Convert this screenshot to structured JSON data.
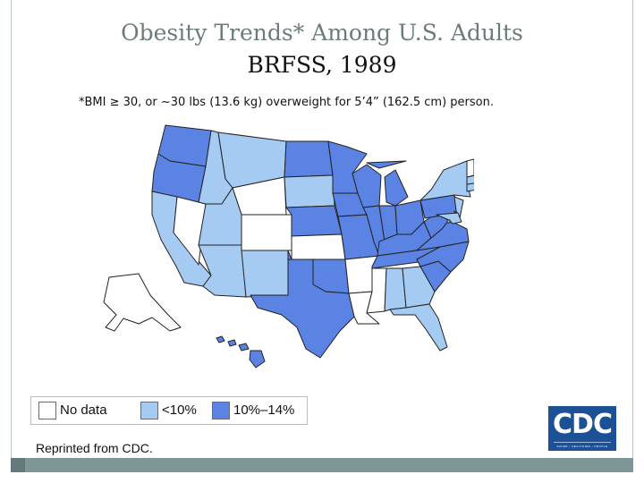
{
  "slide": {
    "title": "Obesity Trends* Among U.S. Adults",
    "subtitle": "BRFSS, 1989",
    "footnote": "*BMI ≥ 30, or ~30 lbs (13.6 kg) overweight for 5’4” (162.5 cm) person.",
    "credit": "Reprinted from CDC."
  },
  "legend": [
    {
      "key": "nodata",
      "label": "No data",
      "color": "#ffffff"
    },
    {
      "key": "lt10",
      "label": "<10%",
      "color": "#a6cbf3"
    },
    {
      "key": "10to14",
      "label": "10%–14%",
      "color": "#5b83e3"
    }
  ],
  "logo": {
    "text": "CDC",
    "tagline": "SAFER • HEALTHIER • PEOPLE"
  },
  "map_data": {
    "category_colors": {
      "nodata": "#ffffff",
      "lt10": "#a6cbf3",
      "10to14": "#5b83e3"
    },
    "border_color": "#222222",
    "states": [
      {
        "code": "WA",
        "category": "10to14"
      },
      {
        "code": "OR",
        "category": "10to14"
      },
      {
        "code": "CA",
        "category": "lt10"
      },
      {
        "code": "NV",
        "category": "nodata"
      },
      {
        "code": "ID",
        "category": "lt10"
      },
      {
        "code": "MT",
        "category": "lt10"
      },
      {
        "code": "WY",
        "category": "nodata"
      },
      {
        "code": "UT",
        "category": "lt10"
      },
      {
        "code": "AZ",
        "category": "lt10"
      },
      {
        "code": "CO",
        "category": "nodata"
      },
      {
        "code": "NM",
        "category": "lt10"
      },
      {
        "code": "ND",
        "category": "10to14"
      },
      {
        "code": "SD",
        "category": "lt10"
      },
      {
        "code": "NE",
        "category": "10to14"
      },
      {
        "code": "KS",
        "category": "nodata"
      },
      {
        "code": "OK",
        "category": "10to14"
      },
      {
        "code": "TX",
        "category": "10to14"
      },
      {
        "code": "MN",
        "category": "10to14"
      },
      {
        "code": "IA",
        "category": "10to14"
      },
      {
        "code": "MO",
        "category": "10to14"
      },
      {
        "code": "AR",
        "category": "nodata"
      },
      {
        "code": "LA",
        "category": "nodata"
      },
      {
        "code": "WI",
        "category": "10to14"
      },
      {
        "code": "IL",
        "category": "10to14"
      },
      {
        "code": "MI",
        "category": "10to14"
      },
      {
        "code": "IN",
        "category": "10to14"
      },
      {
        "code": "OH",
        "category": "10to14"
      },
      {
        "code": "KY",
        "category": "10to14"
      },
      {
        "code": "TN",
        "category": "10to14"
      },
      {
        "code": "MS",
        "category": "nodata"
      },
      {
        "code": "AL",
        "category": "lt10"
      },
      {
        "code": "GA",
        "category": "lt10"
      },
      {
        "code": "FL",
        "category": "lt10"
      },
      {
        "code": "SC",
        "category": "10to14"
      },
      {
        "code": "NC",
        "category": "10to14"
      },
      {
        "code": "VA",
        "category": "10to14"
      },
      {
        "code": "WV",
        "category": "10to14"
      },
      {
        "code": "PA",
        "category": "10to14"
      },
      {
        "code": "NY",
        "category": "lt10"
      },
      {
        "code": "NJ",
        "category": "lt10"
      },
      {
        "code": "DE",
        "category": "lt10"
      },
      {
        "code": "MD",
        "category": "lt10"
      },
      {
        "code": "DC",
        "category": "lt10"
      },
      {
        "code": "CT",
        "category": "lt10"
      },
      {
        "code": "RI",
        "category": "lt10"
      },
      {
        "code": "MA",
        "category": "lt10"
      },
      {
        "code": "VT",
        "category": "nodata"
      },
      {
        "code": "NH",
        "category": "lt10"
      },
      {
        "code": "ME",
        "category": "lt10"
      },
      {
        "code": "AK",
        "category": "nodata"
      },
      {
        "code": "HI",
        "category": "10to14"
      }
    ]
  }
}
